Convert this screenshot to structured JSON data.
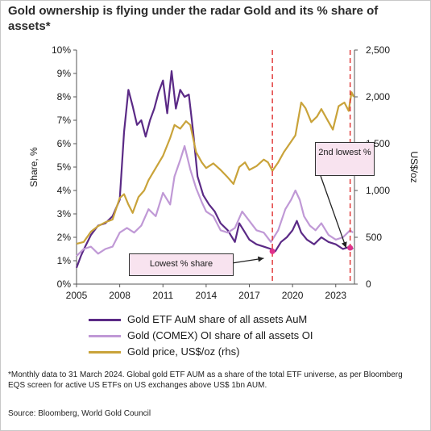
{
  "title": "Gold ownership is flying under the radar Gold and its % share of assets*",
  "chart_data": {
    "type": "line",
    "ylabel_left": "Share, %",
    "ylabel_right": "US$/oz",
    "y_left_ticks": [
      "0%",
      "1%",
      "2%",
      "3%",
      "4%",
      "5%",
      "6%",
      "7%",
      "8%",
      "9%",
      "10%"
    ],
    "y_right_ticks": [
      "0",
      "500",
      "1,000",
      "1,500",
      "2,000",
      "2,500"
    ],
    "x_ticks": [
      "2005",
      "2008",
      "2011",
      "2014",
      "2017",
      "2020",
      "2023"
    ],
    "ylim_left": [
      0,
      10
    ],
    "ylim_right": [
      0,
      2500
    ],
    "xlim": [
      2005,
      2024.3
    ],
    "grid": false,
    "vlines": [
      2018.6,
      2024.0
    ],
    "series": [
      {
        "name": "Gold ETF AuM share of all assets AuM",
        "color": "#5b2a86",
        "axis": "left",
        "x": [
          2005.0,
          2005.3,
          2005.6,
          2006.0,
          2006.5,
          2007.0,
          2007.5,
          2008.0,
          2008.3,
          2008.6,
          2008.9,
          2009.2,
          2009.5,
          2009.8,
          2010.1,
          2010.4,
          2010.7,
          2011.0,
          2011.3,
          2011.6,
          2011.9,
          2012.2,
          2012.5,
          2012.8,
          2013.1,
          2013.4,
          2013.8,
          2014.2,
          2014.6,
          2015.0,
          2015.5,
          2016.0,
          2016.3,
          2016.6,
          2017.0,
          2017.5,
          2018.0,
          2018.5,
          2018.8,
          2019.2,
          2019.6,
          2020.0,
          2020.3,
          2020.6,
          2021.0,
          2021.5,
          2022.0,
          2022.5,
          2023.0,
          2023.5,
          2024.0,
          2024.2
        ],
        "y": [
          0.7,
          1.2,
          1.6,
          2.1,
          2.5,
          2.6,
          2.9,
          3.6,
          6.5,
          8.3,
          7.6,
          6.8,
          7.0,
          6.3,
          7.0,
          7.5,
          8.2,
          8.7,
          7.3,
          9.1,
          7.5,
          8.3,
          8.0,
          8.1,
          6.5,
          4.6,
          3.8,
          3.4,
          3.1,
          2.6,
          2.3,
          1.8,
          2.6,
          2.3,
          1.9,
          1.7,
          1.6,
          1.5,
          1.4,
          1.8,
          2.0,
          2.3,
          2.7,
          2.2,
          1.9,
          1.7,
          2.0,
          1.8,
          1.7,
          1.5,
          1.6,
          1.5
        ]
      },
      {
        "name": "Gold (COMEX) OI share of all assets OI",
        "color": "#c099d6",
        "axis": "left",
        "x": [
          2005.0,
          2005.5,
          2006.0,
          2006.5,
          2007.0,
          2007.5,
          2008.0,
          2008.5,
          2009.0,
          2009.5,
          2010.0,
          2010.5,
          2011.0,
          2011.5,
          2011.8,
          2012.2,
          2012.5,
          2012.9,
          2013.3,
          2013.7,
          2014.0,
          2014.5,
          2015.0,
          2015.5,
          2016.0,
          2016.5,
          2017.0,
          2017.5,
          2018.0,
          2018.5,
          2019.0,
          2019.5,
          2019.9,
          2020.2,
          2020.5,
          2020.8,
          2021.2,
          2021.6,
          2022.0,
          2022.5,
          2023.0,
          2023.5,
          2024.0,
          2024.2
        ],
        "y": [
          1.2,
          1.5,
          1.6,
          1.3,
          1.5,
          1.6,
          2.2,
          2.4,
          2.2,
          2.5,
          3.2,
          2.9,
          3.9,
          3.4,
          4.6,
          5.3,
          5.9,
          4.9,
          4.1,
          3.5,
          3.1,
          2.9,
          2.3,
          2.2,
          2.4,
          3.1,
          2.7,
          2.3,
          2.2,
          1.8,
          2.3,
          3.2,
          3.6,
          4.0,
          3.6,
          2.9,
          2.5,
          2.3,
          2.6,
          2.1,
          1.9,
          2.0,
          2.3,
          2.2
        ]
      },
      {
        "name": "Gold price, US$/oz (rhs)",
        "color": "#c9a33a",
        "axis": "right",
        "x": [
          2005.0,
          2005.5,
          2006.0,
          2006.5,
          2007.0,
          2007.5,
          2008.0,
          2008.3,
          2008.6,
          2008.9,
          2009.3,
          2009.7,
          2010.0,
          2010.5,
          2011.0,
          2011.5,
          2011.8,
          2012.2,
          2012.6,
          2012.9,
          2013.3,
          2013.7,
          2014.0,
          2014.5,
          2015.0,
          2015.5,
          2015.9,
          2016.3,
          2016.7,
          2017.0,
          2017.5,
          2018.0,
          2018.3,
          2018.6,
          2019.0,
          2019.4,
          2019.8,
          2020.2,
          2020.6,
          2020.9,
          2021.3,
          2021.7,
          2022.0,
          2022.4,
          2022.8,
          2023.2,
          2023.6,
          2023.9,
          2024.1,
          2024.25
        ],
        "y": [
          430,
          450,
          560,
          620,
          660,
          690,
          920,
          960,
          850,
          760,
          930,
          1000,
          1110,
          1240,
          1370,
          1560,
          1700,
          1660,
          1740,
          1700,
          1410,
          1300,
          1240,
          1290,
          1220,
          1140,
          1070,
          1250,
          1300,
          1220,
          1260,
          1330,
          1300,
          1210,
          1300,
          1410,
          1500,
          1590,
          1940,
          1880,
          1730,
          1790,
          1870,
          1760,
          1650,
          1900,
          1940,
          1850,
          2050,
          2000
        ]
      }
    ]
  },
  "legend": [
    {
      "label": "Gold ETF AuM share of all assets AuM",
      "color": "#5b2a86"
    },
    {
      "label": "Gold (COMEX) OI share of all assets OI",
      "color": "#c099d6"
    },
    {
      "label": "Gold price, US$/oz (rhs)",
      "color": "#c9a33a"
    }
  ],
  "annotations": {
    "lowest": "Lowest % share",
    "second_lowest": "2nd lowest %"
  },
  "footnote": "*Monthly data to 31 March 2024. Global gold ETF AUM as a share of the total ETF universe, as per Bloomberg EQS screen for active US ETFs on US exchanges above US$ 1bn AUM.",
  "source": "Source: Bloomberg, World Gold Council"
}
